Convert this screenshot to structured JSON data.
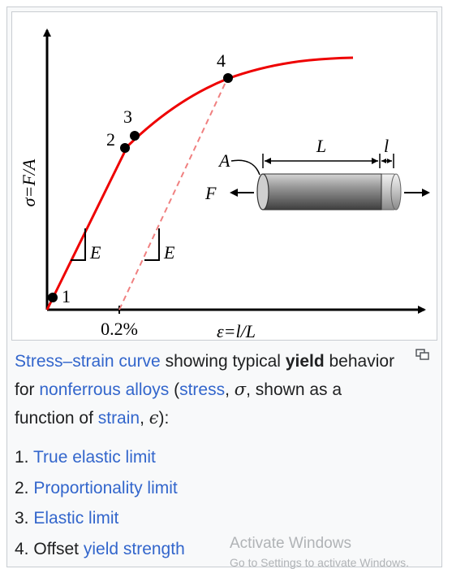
{
  "figure": {
    "y_axis_label": "σ=F/A",
    "x_axis_label": "ε=l/L",
    "offset_label": "0.2%",
    "modulus_label": "E",
    "point_labels": [
      "1",
      "2",
      "3",
      "4"
    ],
    "specimen": {
      "length_label": "L",
      "extension_label": "l",
      "area_label": "A",
      "force_label": "F"
    },
    "colors": {
      "curve": "#ee0000",
      "axes": "#000000",
      "specimen": "#707070"
    }
  },
  "caption": {
    "link_stress_strain": "Stress–strain curve",
    "text_1": " showing typical ",
    "bold_yield": "yield",
    "text_2": " behavior for ",
    "link_nonferrous": "nonferrous alloys",
    "text_3": " (",
    "link_stress": "stress",
    "text_4": ", ",
    "sym_sigma": "σ",
    "text_5": ", shown as a function of ",
    "link_strain": "strain",
    "text_6": ", ",
    "sym_epsilon": "ϵ",
    "text_7": "):"
  },
  "list": [
    {
      "number": "1. ",
      "prefix": "",
      "link": "True elastic limit"
    },
    {
      "number": "2. ",
      "prefix": "",
      "link": "Proportionality limit"
    },
    {
      "number": "3. ",
      "prefix": "",
      "link": "Elastic limit"
    },
    {
      "number": "4. ",
      "prefix": "Offset ",
      "link": "yield strength"
    }
  ],
  "watermark": {
    "title": "Activate Windows",
    "subtitle": "Go to Settings to activate Windows."
  },
  "icons": {
    "enlarge": "magnify-icon"
  }
}
